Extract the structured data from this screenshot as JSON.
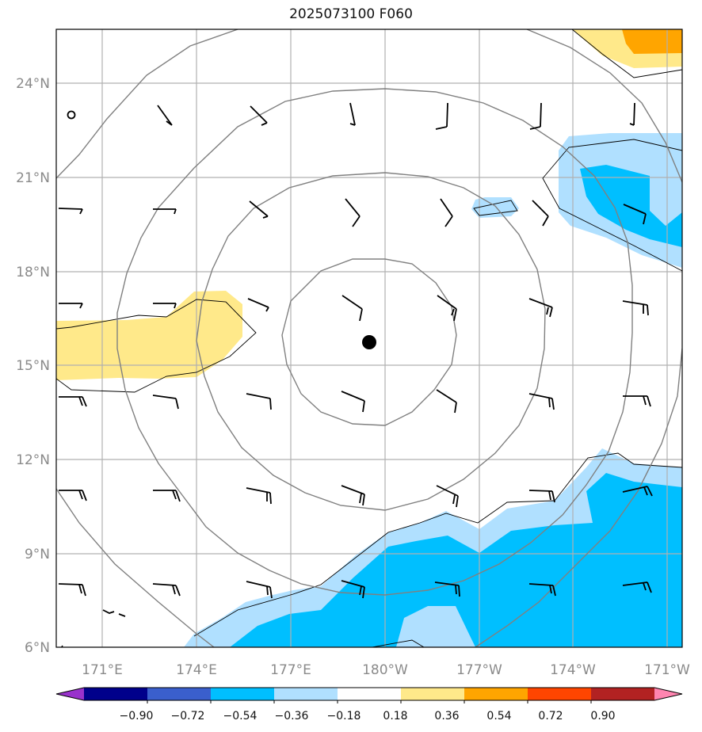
{
  "title": "2025073100 F060",
  "latitude_labels": [
    "24°N",
    "21°N",
    "18°N",
    "15°N",
    "12°N",
    "9°N",
    "6°N"
  ],
  "longitude_labels": [
    "171°E",
    "174°E",
    "177°E",
    "180°W",
    "177°W",
    "174°W",
    "171°W"
  ],
  "colorbar": {
    "ticks": [
      "−0.90",
      "−0.72",
      "−0.54",
      "−0.36",
      "−0.18",
      "0.18",
      "0.36",
      "0.54",
      "0.72",
      "0.90"
    ],
    "colors": [
      "#9932cc",
      "#00008b",
      "#3a5fcd",
      "#00bfff",
      "#b0e0ff",
      "#ffffff",
      "#ffe98a",
      "#ffa500",
      "#ff4500",
      "#b22222",
      "#ff85b0"
    ],
    "extend": "both"
  },
  "fill_colors": {
    "light_blue": "#b0e0ff",
    "blue": "#00bfff",
    "light_yellow": "#ffe98a",
    "orange": "#ffa500"
  },
  "map": {
    "projection": "PlateCarree",
    "lon_range": [
      169.5,
      189.2
    ],
    "lat_range": [
      5.8,
      25.7
    ],
    "grid": true
  },
  "center_marker": {
    "symbol": "filled-circle",
    "lon": 179.6,
    "lat": 15.7
  },
  "range_rings": 4,
  "wind_barbs": "present"
}
